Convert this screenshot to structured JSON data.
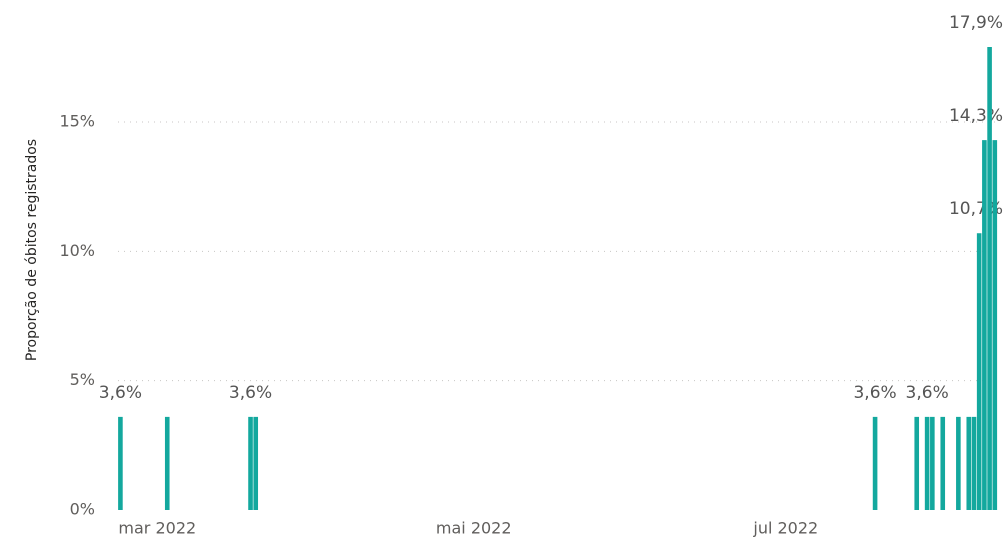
{
  "chart_data": {
    "type": "bar",
    "y_label": "Proporção de óbitos registrados",
    "x": [
      "2022-03-01",
      "2022-03-10",
      "2022-03-26",
      "2022-03-27",
      "2022-07-24",
      "2022-08-01",
      "2022-08-03",
      "2022-08-04",
      "2022-08-06",
      "2022-08-09",
      "2022-08-11",
      "2022-08-12",
      "2022-08-13",
      "2022-08-14",
      "2022-08-15",
      "2022-08-16"
    ],
    "values": [
      3.6,
      3.6,
      3.6,
      3.6,
      3.6,
      3.6,
      3.6,
      3.6,
      3.6,
      3.6,
      3.6,
      3.6,
      10.7,
      14.3,
      17.9,
      14.3
    ],
    "value_labels": [
      "3,6%",
      null,
      "3,6%",
      null,
      "3,6%",
      null,
      "3,6%",
      null,
      null,
      null,
      null,
      null,
      "10,7%",
      "14,3%",
      "17,9%",
      null
    ],
    "color": "#13a89e",
    "xlim": [
      "2022-02-27",
      "2022-08-17"
    ],
    "xticks": [
      {
        "value": "2022-03-01",
        "label": "mar 2022"
      },
      {
        "value": "2022-05-01",
        "label": "mai 2022"
      },
      {
        "value": "2022-07-01",
        "label": "jul 2022"
      }
    ],
    "ylim": [
      0,
      17.9
    ],
    "yticks": [
      {
        "value": 0,
        "label": "0%"
      },
      {
        "value": 5,
        "label": "5%"
      },
      {
        "value": 10,
        "label": "10%"
      },
      {
        "value": 15,
        "label": "15%"
      }
    ],
    "grid": true
  }
}
